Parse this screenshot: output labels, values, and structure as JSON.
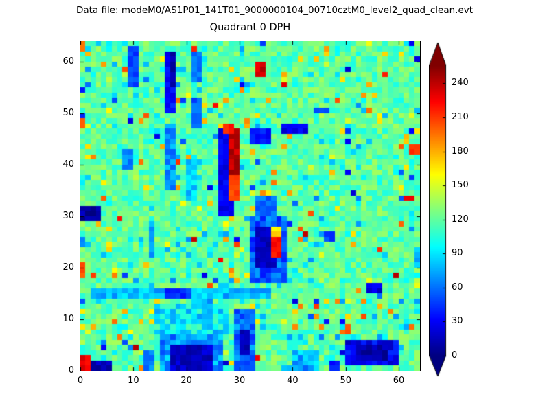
{
  "chart_data": {
    "type": "heatmap",
    "suptitle": "Data file: modeM0/AS1P01_141T01_9000000104_00710cztM0_level2_quad_clean.evt",
    "title": "Quadrant 0 DPH",
    "grid": {
      "nx": 64,
      "ny": 64
    },
    "xlim": [
      0,
      64
    ],
    "ylim": [
      0,
      64
    ],
    "x_ticks": [
      0,
      10,
      20,
      30,
      40,
      50,
      60
    ],
    "y_ticks": [
      0,
      10,
      20,
      30,
      40,
      50,
      60
    ],
    "colormap": "jet",
    "colorbar": {
      "ticks": [
        0,
        30,
        60,
        90,
        120,
        150,
        180,
        210,
        240
      ],
      "vmin": 0,
      "vmax": 256,
      "extend": "both",
      "over_color": "#800000",
      "under_color": "#000080"
    },
    "background": {
      "base": 120,
      "noise": 18,
      "seed": 7,
      "low_speckle_prob": 0.1,
      "low_speckle_depth": 45,
      "high_speckle_prob": 0.045,
      "high_speckle_boost": 50,
      "deep_speckle_prob": 0.011,
      "red_speckle_prob": 0.003
    },
    "features": [
      {
        "x": 0,
        "y": 0,
        "w": 2,
        "h": 3,
        "v": 230
      },
      {
        "x": 2,
        "y": 0,
        "w": 4,
        "h": 2,
        "v": 15
      },
      {
        "x": 12,
        "y": 0,
        "w": 2,
        "h": 4,
        "v": 65
      },
      {
        "x": 14,
        "y": 7,
        "w": 14,
        "h": 6,
        "v": 95,
        "j": 25
      },
      {
        "x": 15,
        "y": 0,
        "w": 12,
        "h": 7,
        "v": 70,
        "j": 20
      },
      {
        "x": 17,
        "y": 0,
        "w": 8,
        "h": 5,
        "v": 18
      },
      {
        "x": 23,
        "y": 8,
        "w": 2,
        "h": 6,
        "v": 75
      },
      {
        "x": 29,
        "y": 0,
        "w": 4,
        "h": 12,
        "v": 60,
        "j": 20
      },
      {
        "x": 30,
        "y": 3,
        "w": 2,
        "h": 5,
        "v": 15
      },
      {
        "x": 40,
        "y": 0,
        "w": 5,
        "h": 4,
        "v": 75,
        "j": 20
      },
      {
        "x": 47,
        "y": 0,
        "w": 2,
        "h": 2,
        "v": 40
      },
      {
        "x": 50,
        "y": 1,
        "w": 10,
        "h": 5,
        "v": 30,
        "j": 15
      },
      {
        "x": 52,
        "y": 2,
        "w": 6,
        "h": 3,
        "v": 10
      },
      {
        "x": 2,
        "y": 14,
        "w": 34,
        "h": 2,
        "v": 80,
        "j": 15
      },
      {
        "x": 16,
        "y": 14,
        "w": 5,
        "h": 2,
        "v": 45
      },
      {
        "x": 54,
        "y": 15,
        "w": 3,
        "h": 2,
        "v": 25
      },
      {
        "x": 0,
        "y": 18,
        "w": 1,
        "h": 3,
        "v": 205
      },
      {
        "x": 0,
        "y": 24,
        "w": 1,
        "h": 2,
        "v": 60
      },
      {
        "x": 13,
        "y": 22,
        "w": 1,
        "h": 7,
        "v": 75
      },
      {
        "x": 0,
        "y": 29,
        "w": 4,
        "h": 3,
        "v": 8
      },
      {
        "x": 20,
        "y": 33,
        "w": 2,
        "h": 8,
        "v": 85,
        "j": 15
      },
      {
        "x": 8,
        "y": 39,
        "w": 2,
        "h": 4,
        "v": 65
      },
      {
        "x": 0,
        "y": 47,
        "w": 1,
        "h": 2,
        "v": 210
      },
      {
        "x": 16,
        "y": 35,
        "w": 2,
        "h": 13,
        "v": 70,
        "j": 15
      },
      {
        "x": 16,
        "y": 50,
        "w": 2,
        "h": 12,
        "v": 35
      },
      {
        "x": 17,
        "y": 55,
        "w": 1,
        "h": 7,
        "v": 12
      },
      {
        "x": 9,
        "y": 55,
        "w": 2,
        "h": 8,
        "v": 50
      },
      {
        "x": 21,
        "y": 47,
        "w": 2,
        "h": 6,
        "v": 55
      },
      {
        "x": 21,
        "y": 56,
        "w": 2,
        "h": 6,
        "v": 60
      },
      {
        "x": 26,
        "y": 30,
        "w": 3,
        "h": 17,
        "v": 28
      },
      {
        "x": 28,
        "y": 33,
        "w": 2,
        "h": 5,
        "v": 205
      },
      {
        "x": 28,
        "y": 38,
        "w": 2,
        "h": 9,
        "v": 240
      },
      {
        "x": 27,
        "y": 46,
        "w": 2,
        "h": 2,
        "v": 215
      },
      {
        "x": 32,
        "y": 17,
        "w": 7,
        "h": 13,
        "v": 55,
        "j": 20
      },
      {
        "x": 33,
        "y": 20,
        "w": 4,
        "h": 8,
        "v": 15
      },
      {
        "x": 36,
        "y": 22,
        "w": 2,
        "h": 4,
        "v": 225
      },
      {
        "x": 36,
        "y": 26,
        "w": 2,
        "h": 2,
        "v": 170
      },
      {
        "x": 33,
        "y": 30,
        "w": 4,
        "h": 4,
        "v": 60
      },
      {
        "x": 32,
        "y": 44,
        "w": 4,
        "h": 3,
        "v": 35
      },
      {
        "x": 38,
        "y": 46,
        "w": 5,
        "h": 2,
        "v": 28
      },
      {
        "x": 33,
        "y": 57,
        "w": 2,
        "h": 3,
        "v": 235
      },
      {
        "x": 44,
        "y": 50,
        "w": 3,
        "h": 1,
        "v": 45
      },
      {
        "x": 46,
        "y": 25,
        "w": 2,
        "h": 2,
        "v": 50
      },
      {
        "x": 61,
        "y": 33,
        "w": 2,
        "h": 1,
        "v": 228
      },
      {
        "x": 62,
        "y": 42,
        "w": 2,
        "h": 2,
        "v": 215
      },
      {
        "x": 63,
        "y": 20,
        "w": 1,
        "h": 4,
        "v": 80
      },
      {
        "x": 0,
        "y": 62,
        "w": 1,
        "h": 2,
        "v": 200
      }
    ]
  }
}
